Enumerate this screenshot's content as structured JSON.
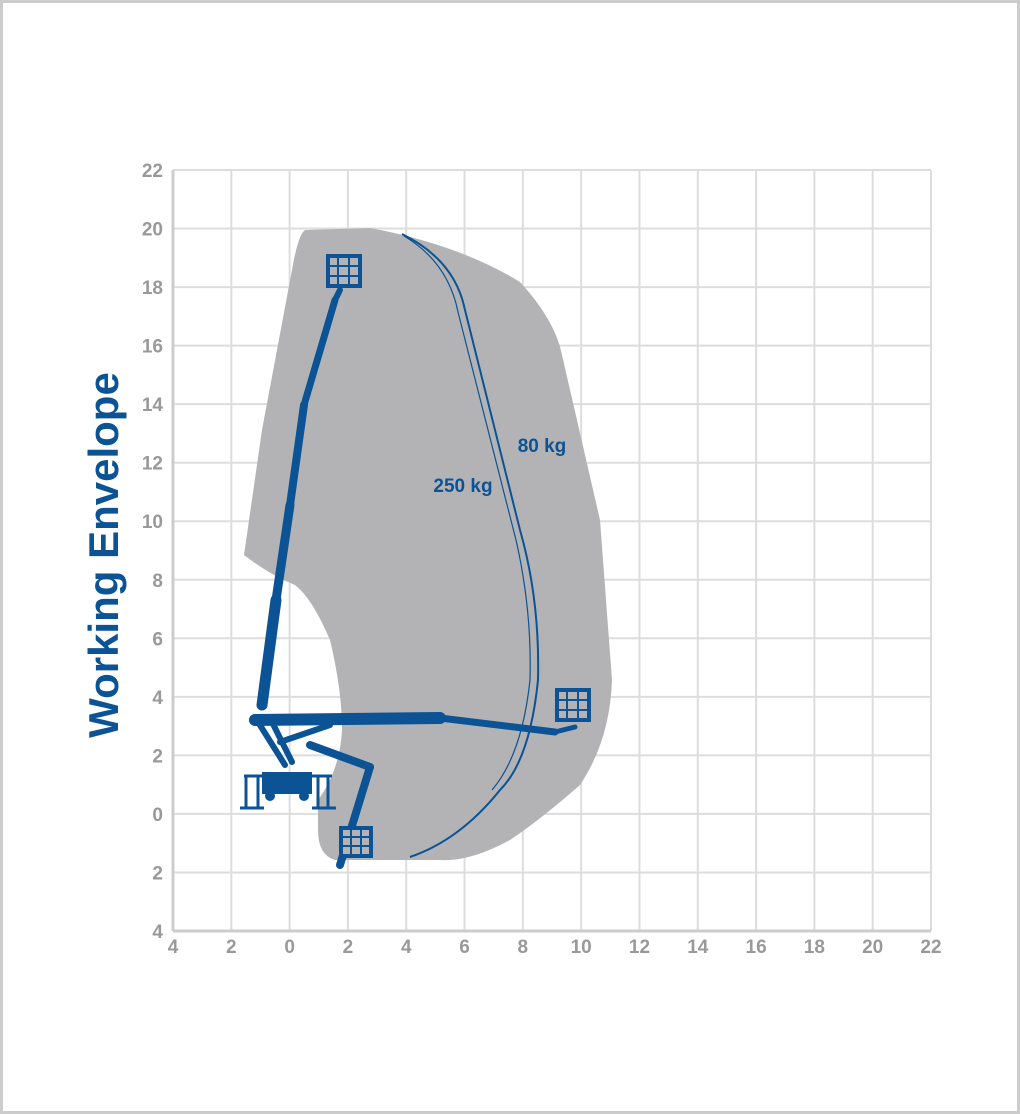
{
  "title": "Working Envelope",
  "y_axis_labels": [
    "22",
    "20",
    "18",
    "16",
    "14",
    "12",
    "10",
    "8",
    "6",
    "4",
    "2",
    "0",
    "2",
    "4"
  ],
  "x_axis_labels": [
    "4",
    "2",
    "0",
    "2",
    "4",
    "6",
    "8",
    "10",
    "12",
    "14",
    "16",
    "18",
    "20",
    "22"
  ],
  "load_labels": [
    "80 kg",
    "250 kg"
  ]
}
